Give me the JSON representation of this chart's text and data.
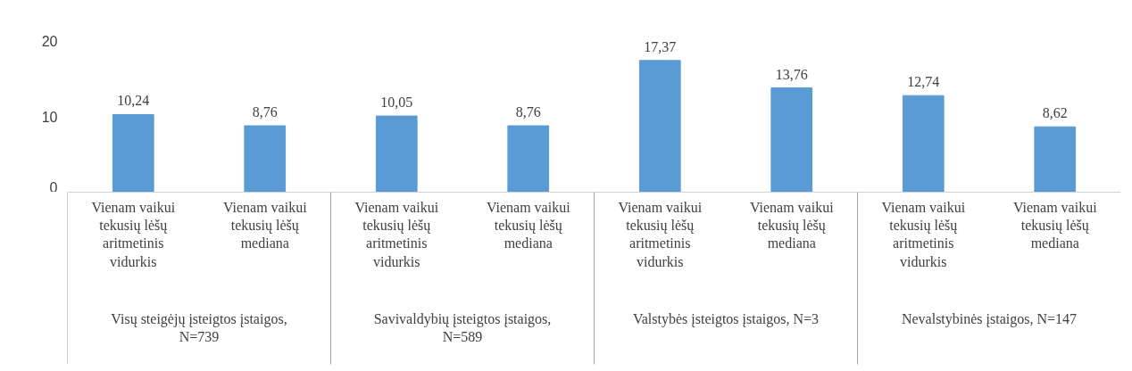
{
  "chart_data": {
    "type": "bar",
    "categories": [
      "Vienam vaikui tekusių lėšų aritmetinis vidurkis",
      "Vienam vaikui tekusių lėšų mediana",
      "Vienam vaikui tekusių lėšų aritmetinis vidurkis",
      "Vienam vaikui tekusių lėšų mediana",
      "Vienam vaikui tekusių lėšų aritmetinis vidurkis",
      "Vienam vaikui tekusių lėšų mediana",
      "Vienam vaikui tekusių lėšų aritmetinis vidurkis",
      "Vienam vaikui tekusių lėšų mediana"
    ],
    "annotations": [
      "Visų steigėjų įsteigtos įstaigos, N=739",
      "Savivaldybių įsteigtos įstaigos, N=589",
      "Valstybės įsteigtos įstaigos, N=3",
      "Nevalstybinės įstaigos, N=147"
    ],
    "values": [
      10.24,
      8.76,
      10.05,
      8.76,
      17.37,
      13.76,
      12.74,
      8.62
    ],
    "value_labels": [
      "10,24",
      "8,76",
      "10,05",
      "8,76",
      "17,37",
      "13,76",
      "12,74",
      "8,62"
    ],
    "color": "#5b9bd5",
    "ylim": [
      0,
      20
    ],
    "yticks": [
      0,
      10,
      20
    ],
    "grid": false
  }
}
